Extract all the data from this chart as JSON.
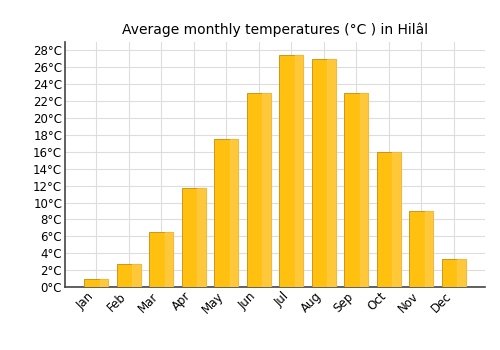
{
  "title": "Average monthly temperatures (°C ) in Hilâ¹l",
  "title_display": "Average monthly temperatures (°C ) in Hilâl",
  "months": [
    "Jan",
    "Feb",
    "Mar",
    "Apr",
    "May",
    "Jun",
    "Jul",
    "Aug",
    "Sep",
    "Oct",
    "Nov",
    "Dec"
  ],
  "temperatures": [
    1.0,
    2.7,
    6.5,
    11.7,
    17.5,
    23.0,
    27.5,
    27.0,
    23.0,
    16.0,
    9.0,
    3.3
  ],
  "bar_color_main": "#FFC010",
  "bar_color_edge": "#CC8800",
  "bar_color_light": "#FFD060",
  "background_color": "#ffffff",
  "grid_color": "#dddddd",
  "ylim": [
    0,
    29
  ],
  "yticks": [
    0,
    2,
    4,
    6,
    8,
    10,
    12,
    14,
    16,
    18,
    20,
    22,
    24,
    26,
    28
  ],
  "title_fontsize": 10,
  "tick_fontsize": 8.5
}
